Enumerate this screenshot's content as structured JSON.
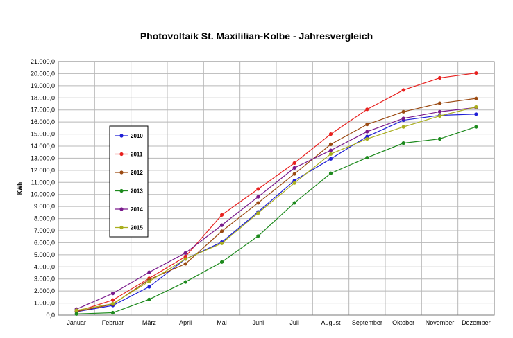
{
  "chart_data": {
    "type": "line",
    "title": "Photovoltaik St. Maxililian-Kolbe - Jahresvergleich",
    "xlabel": "",
    "ylabel": "KWh",
    "ylim": [
      0,
      21000
    ],
    "ytick_step": 1000,
    "ytick_labels": [
      "0,0",
      "1.000,0",
      "2.000,0",
      "3.000,0",
      "4.000,0",
      "5.000,0",
      "6.000,0",
      "7.000,0",
      "8.000,0",
      "9.000,0",
      "10.000,0",
      "11.000,0",
      "12.000,0",
      "13.000,0",
      "14.000,0",
      "15.000,0",
      "16.000,0",
      "17.000,0",
      "18.000,0",
      "19.000,0",
      "20.000,0",
      "21.000,0"
    ],
    "grid": true,
    "legend_position": "left",
    "categories": [
      "Januar",
      "Februar",
      "März",
      "April",
      "Mai",
      "Juni",
      "Juli",
      "August",
      "September",
      "Oktober",
      "November",
      "Dezember"
    ],
    "series": [
      {
        "name": "2010",
        "color": "#1f1fd6",
        "values": [
          280,
          800,
          2350,
          4650,
          6050,
          8550,
          11150,
          12950,
          14800,
          16150,
          16550,
          16650
        ]
      },
      {
        "name": "2011",
        "color": "#e8201e",
        "values": [
          300,
          1250,
          3050,
          4850,
          8300,
          10450,
          12600,
          15000,
          17050,
          18650,
          19650,
          20050
        ]
      },
      {
        "name": "2012",
        "color": "#9b4a12",
        "values": [
          300,
          900,
          2950,
          4250,
          6950,
          9300,
          11700,
          14150,
          15800,
          16850,
          17550,
          17950
        ]
      },
      {
        "name": "2013",
        "color": "#1d8a1d",
        "values": [
          100,
          200,
          1300,
          2750,
          4400,
          6550,
          9300,
          11750,
          13050,
          14250,
          14600,
          15600
        ]
      },
      {
        "name": "2014",
        "color": "#7a1a8c",
        "values": [
          500,
          1800,
          3550,
          5150,
          7450,
          9800,
          12200,
          13650,
          15200,
          16300,
          16850,
          17200
        ]
      },
      {
        "name": "2015",
        "color": "#a9ae1d",
        "values": [
          400,
          950,
          2800,
          4650,
          5950,
          8450,
          10950,
          13350,
          14600,
          15600,
          16500,
          17250
        ]
      }
    ]
  }
}
